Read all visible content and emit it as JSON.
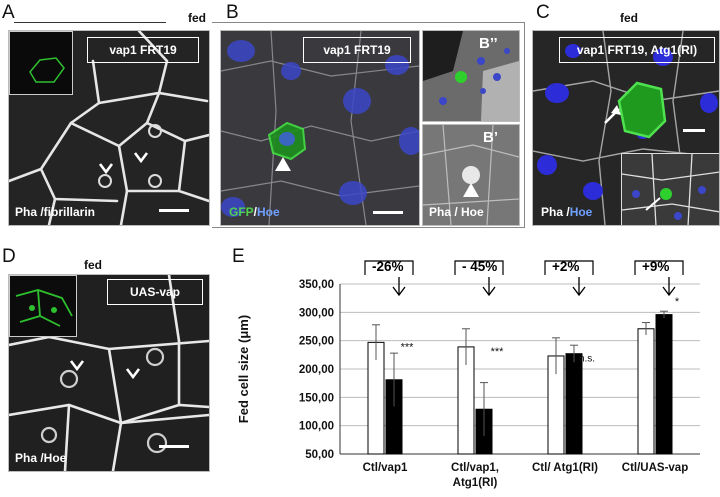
{
  "panels": {
    "A": {
      "letter": "A",
      "condition": "fed",
      "genotype": "vap1 FRT19",
      "stain": "Pha /fibrillarin"
    },
    "B": {
      "letter": "B",
      "genotype": "vap1 FRT19",
      "stain_gfp": "GFP",
      "stain_sep": "/",
      "stain_hoe": "Hoe",
      "sub1": "B’’",
      "sub2": "B’",
      "sub_stain": "Pha / Hoe"
    },
    "C": {
      "letter": "C",
      "condition": "fed",
      "genotype": "vap1 FRT19, Atg1(RI)",
      "stain_pha": "Pha /",
      "stain_hoe": "Hoe"
    },
    "D": {
      "letter": "D",
      "condition": "fed",
      "genotype": "UAS-vap",
      "stain": "Pha /Hoe"
    },
    "E": {
      "letter": "E"
    }
  },
  "chart_data": {
    "type": "bar",
    "ylabel": "Fed cell size (μm)",
    "ylim": [
      50,
      350
    ],
    "yticks": [
      "50,00",
      "100,00",
      "150,00",
      "200,00",
      "250,00",
      "300,00",
      "350,00"
    ],
    "categories": [
      "Ctl/vap1",
      "Ctl/vap1,\nAtg1(RI)",
      "Ctl/ Atg1(RI)",
      "Ctl/UAS-vap"
    ],
    "series": [
      {
        "fill": "#ffffff",
        "values": [
          247,
          239,
          223,
          271
        ],
        "errors": [
          31,
          32,
          32,
          11
        ]
      },
      {
        "fill": "#000000",
        "values": [
          181,
          129,
          227,
          296
        ],
        "errors": [
          47,
          47,
          15,
          6
        ]
      }
    ],
    "changes": [
      "-26%",
      "- 45%",
      "+2%",
      "+9%"
    ],
    "significance": [
      "***",
      "***",
      "n.s.",
      "*"
    ],
    "grid": true
  }
}
